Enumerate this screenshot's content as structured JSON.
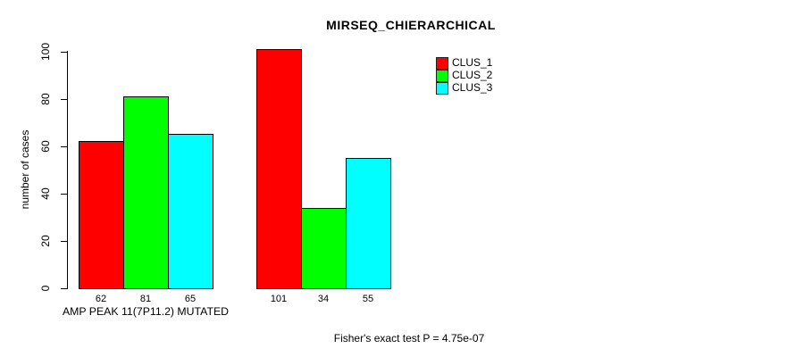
{
  "chart_data": {
    "type": "bar",
    "title": "MIRSEQ_CHIERARCHICAL",
    "ylabel": "number of cases",
    "xlabel": "",
    "ylim": [
      0,
      100
    ],
    "yticks": [
      0,
      20,
      40,
      60,
      80,
      100
    ],
    "grid": false,
    "legend_position": "top-right",
    "bar_border_color": "#000000",
    "series": [
      {
        "name": "CLUS_1",
        "color": "#ff0000"
      },
      {
        "name": "CLUS_2",
        "color": "#00ff00"
      },
      {
        "name": "CLUS_3",
        "color": "#00ffff"
      }
    ],
    "groups": [
      {
        "label": "AMP PEAK 11(7P11.2) MUTATED",
        "values": [
          62,
          81,
          65
        ]
      },
      {
        "label": "",
        "values": [
          101,
          34,
          55
        ]
      }
    ],
    "footnote": "Fisher's exact test P = 4.75e-07"
  }
}
